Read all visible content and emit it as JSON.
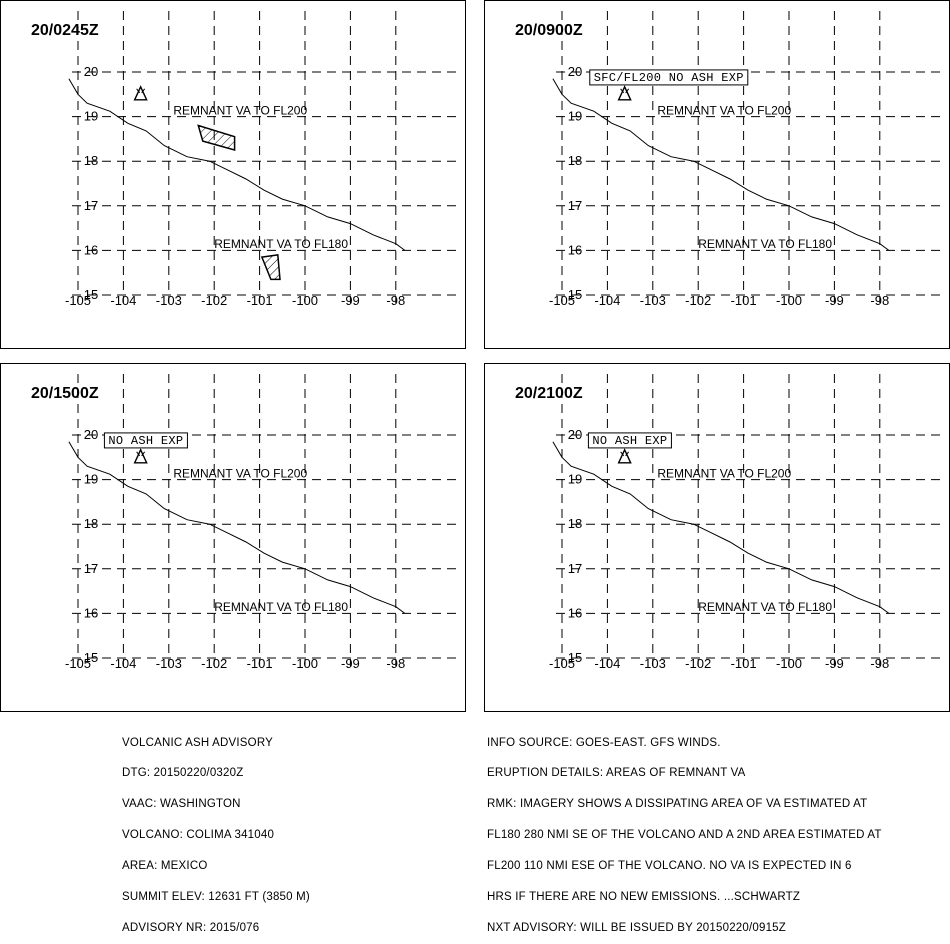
{
  "panels": [
    {
      "time": "20/0245Z",
      "labels": [
        {
          "text": "REMNANT VA TO FL200",
          "boxed": false
        },
        {
          "text": "REMNANT VA TO FL180",
          "boxed": false
        }
      ],
      "ash_areas": [
        {
          "name": "remnant-va-fl200-area",
          "points": [
            [
              -102.35,
              18.8
            ],
            [
              -101.55,
              18.55
            ],
            [
              -101.55,
              18.25
            ],
            [
              -102.25,
              18.45
            ]
          ]
        },
        {
          "name": "remnant-va-fl180-area",
          "points": [
            [
              -100.95,
              15.85
            ],
            [
              -100.6,
              15.9
            ],
            [
              -100.55,
              15.35
            ],
            [
              -100.75,
              15.35
            ]
          ]
        }
      ]
    },
    {
      "time": "20/0900Z",
      "labels": [
        {
          "text": "SFC/FL200 NO ASH EXP",
          "boxed": true
        },
        {
          "text": "REMNANT VA TO FL200",
          "boxed": false
        },
        {
          "text": "REMNANT VA TO FL180",
          "boxed": false
        }
      ],
      "ash_areas": []
    },
    {
      "time": "20/1500Z",
      "labels": [
        {
          "text": "NO ASH EXP",
          "boxed": true
        },
        {
          "text": "REMNANT VA TO FL200",
          "boxed": false
        },
        {
          "text": "REMNANT VA TO FL180",
          "boxed": false
        }
      ],
      "ash_areas": []
    },
    {
      "time": "20/2100Z",
      "labels": [
        {
          "text": "NO ASH EXP",
          "boxed": true
        },
        {
          "text": "REMNANT VA TO FL200",
          "boxed": false
        },
        {
          "text": "REMNANT VA TO FL180",
          "boxed": false
        }
      ],
      "ash_areas": []
    }
  ],
  "axes": {
    "lon_labels": [
      "-105",
      "-104",
      "-103",
      "-102",
      "-101",
      "-100",
      "-99",
      "-98"
    ],
    "lat_labels": [
      "15",
      "16",
      "17",
      "18",
      "19",
      "20"
    ]
  },
  "volcano_marker": {
    "icon": "volcano-triangle-icon",
    "lon": -103.62,
    "lat": 19.51
  },
  "coastline": [
    [
      -105.2,
      19.85
    ],
    [
      -105.0,
      19.5
    ],
    [
      -104.8,
      19.3
    ],
    [
      -104.3,
      19.12
    ],
    [
      -103.9,
      18.85
    ],
    [
      -103.5,
      18.68
    ],
    [
      -103.1,
      18.35
    ],
    [
      -102.6,
      18.1
    ],
    [
      -102.1,
      18.0
    ],
    [
      -101.7,
      17.8
    ],
    [
      -101.3,
      17.6
    ],
    [
      -100.9,
      17.35
    ],
    [
      -100.5,
      17.15
    ],
    [
      -100.0,
      17.0
    ],
    [
      -99.5,
      16.75
    ],
    [
      -99.0,
      16.6
    ],
    [
      -98.5,
      16.35
    ],
    [
      -98.0,
      16.15
    ],
    [
      -97.8,
      16.0
    ]
  ],
  "info_left": [
    "VOLCANIC ASH ADVISORY",
    "DTG: 20150220/0320Z",
    "VAAC: WASHINGTON",
    "VOLCANO: COLIMA 341040",
    "AREA: MEXICO",
    "SUMMIT ELEV: 12631 FT (3850 M)",
    "ADVISORY NR: 2015/076"
  ],
  "info_right": [
    "INFO SOURCE: GOES-EAST. GFS WINDS.",
    "ERUPTION DETAILS: AREAS OF REMNANT VA",
    "RMK: IMAGERY SHOWS A DISSIPATING AREA OF VA ESTIMATED AT",
    "FL180 280 NMI SE OF THE VOLCANO AND A 2ND AREA ESTIMATED AT",
    "FL200 110 NMI ESE OF THE VOLCANO. NO VA IS EXPECTED IN 6",
    "HRS IF THERE ARE NO NEW EMISSIONS. ...SCHWARTZ",
    "NXT ADVISORY: WILL BE ISSUED BY 20150220/0915Z"
  ]
}
